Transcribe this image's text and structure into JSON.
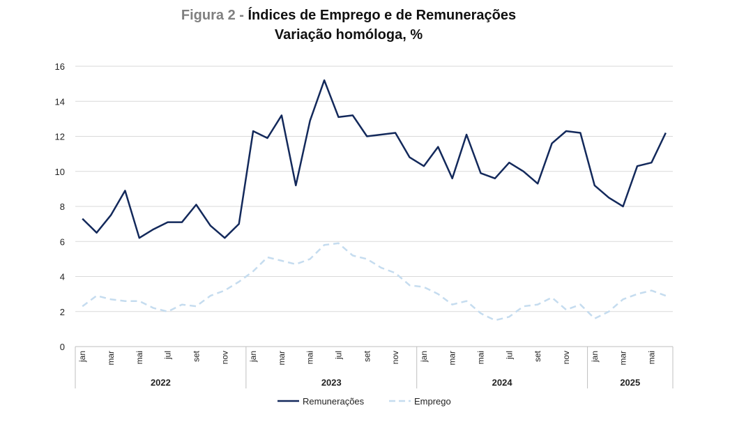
{
  "chart_data": {
    "type": "line",
    "title_prefix": "Figura 2 - ",
    "title": "Índices de Emprego e de Remunerações",
    "subtitle": "Variação homóloga, %",
    "ylim": [
      0,
      16
    ],
    "y_ticks": [
      "0",
      "2",
      "4",
      "6",
      "8",
      "10",
      "12",
      "14",
      "16"
    ],
    "month_labels": [
      "jan",
      "",
      "mar",
      "",
      "mai",
      "",
      "jul",
      "",
      "set",
      "",
      "nov",
      "",
      "jan",
      "",
      "mar",
      "",
      "mai",
      "",
      "jul",
      "",
      "set",
      "",
      "nov",
      "",
      "jan",
      "",
      "mar",
      "",
      "mai",
      "",
      "jul",
      "",
      "set",
      "",
      "nov",
      "",
      "jan",
      "",
      "mar",
      "",
      "mai",
      ""
    ],
    "years": [
      {
        "label": "2022",
        "start": 0,
        "count": 12
      },
      {
        "label": "2023",
        "start": 12,
        "count": 12
      },
      {
        "label": "2024",
        "start": 24,
        "count": 12
      },
      {
        "label": "2025",
        "start": 36,
        "count": 6
      }
    ],
    "series": [
      {
        "name": "Remunerações",
        "color": "#13295b",
        "dash": "none",
        "values": [
          7.3,
          6.5,
          7.5,
          8.9,
          6.2,
          6.7,
          7.1,
          7.1,
          8.1,
          6.9,
          6.2,
          7.0,
          12.3,
          11.9,
          13.2,
          9.2,
          12.9,
          15.2,
          13.1,
          13.2,
          12.0,
          12.1,
          12.2,
          10.8,
          10.3,
          11.4,
          9.6,
          12.1,
          9.9,
          9.6,
          10.5,
          10.0,
          9.3,
          11.6,
          12.3,
          12.2,
          9.2,
          8.5,
          8.0,
          10.3,
          10.5,
          12.2
        ]
      },
      {
        "name": "Emprego",
        "color": "#c5dcef",
        "dash": "9,6",
        "values": [
          2.3,
          2.9,
          2.7,
          2.6,
          2.6,
          2.2,
          2.0,
          2.4,
          2.3,
          2.9,
          3.2,
          3.7,
          4.3,
          5.1,
          4.9,
          4.7,
          5.0,
          5.8,
          5.9,
          5.2,
          5.0,
          4.5,
          4.2,
          3.5,
          3.4,
          3.0,
          2.4,
          2.6,
          1.9,
          1.5,
          1.7,
          2.3,
          2.4,
          2.8,
          2.1,
          2.4,
          1.6,
          2.0,
          2.7,
          3.0,
          3.2,
          2.9
        ]
      }
    ]
  }
}
